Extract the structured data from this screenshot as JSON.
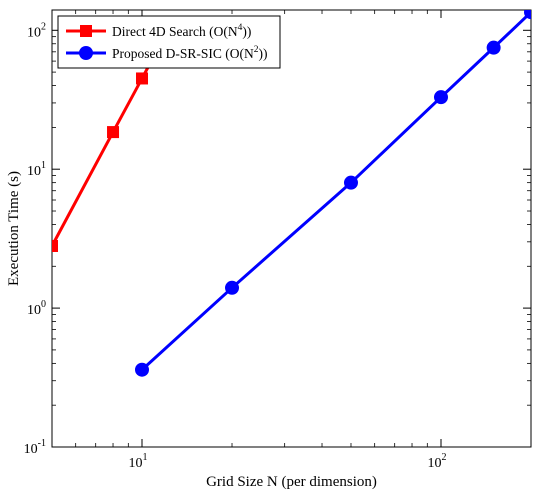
{
  "chart_data": {
    "type": "line",
    "xscale": "log",
    "yscale": "log",
    "xlim": [
      5,
      200
    ],
    "ylim": [
      0.1,
      140
    ],
    "xlabel": "Grid Size N (per dimension)",
    "ylabel": "Execution Time (s)",
    "grid": false,
    "legend_position": "top-left",
    "x_ticks": [
      {
        "value": 10,
        "base": "10",
        "exp": "1"
      },
      {
        "value": 100,
        "base": "10",
        "exp": "2"
      }
    ],
    "y_ticks": [
      {
        "value": 0.1,
        "base": "10",
        "exp": "-1"
      },
      {
        "value": 1,
        "base": "10",
        "exp": "0"
      },
      {
        "value": 10,
        "base": "10",
        "exp": "1"
      },
      {
        "value": 100,
        "base": "10",
        "exp": "2"
      }
    ],
    "series": [
      {
        "name": "Direct 4D Search (O(N4))",
        "legend_main": "Direct 4D Search (O(N",
        "legend_sup": "4",
        "legend_tail": "))",
        "color": "#ff0000",
        "marker": "square",
        "x": [
          5,
          8,
          10,
          11
        ],
        "y": [
          2.8,
          18.5,
          45,
          66
        ]
      },
      {
        "name": "Proposed D-SR-SIC (O(N2))",
        "legend_main": "Proposed D-SR-SIC (O(N",
        "legend_sup": "2",
        "legend_tail": "))",
        "color": "#0000ff",
        "marker": "circle",
        "x": [
          10,
          20,
          50,
          100,
          150,
          200
        ],
        "y": [
          0.36,
          1.4,
          8,
          33,
          75,
          135
        ]
      }
    ]
  }
}
